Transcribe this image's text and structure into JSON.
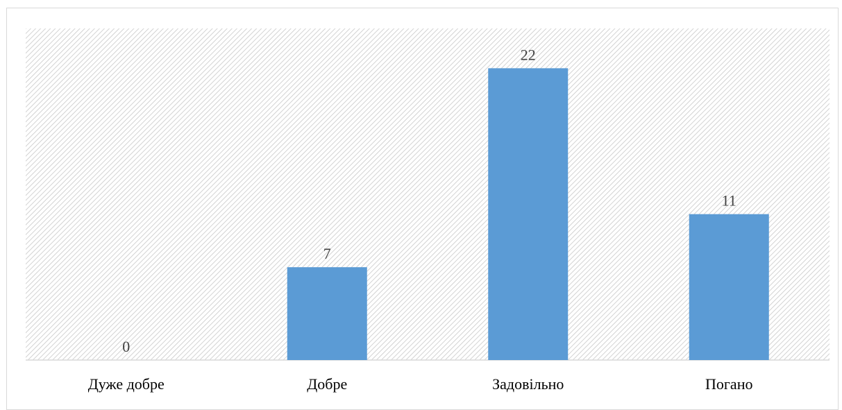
{
  "chart_data": {
    "type": "bar",
    "categories": [
      "Дуже добре",
      "Добре",
      "Задовільно",
      "Погано"
    ],
    "values": [
      0,
      7,
      22,
      11
    ],
    "ylim": [
      0,
      25
    ],
    "grid": false,
    "data_labels": true,
    "bar_color": "#5b9bd5",
    "plot_background": "diagonal-hatch"
  }
}
